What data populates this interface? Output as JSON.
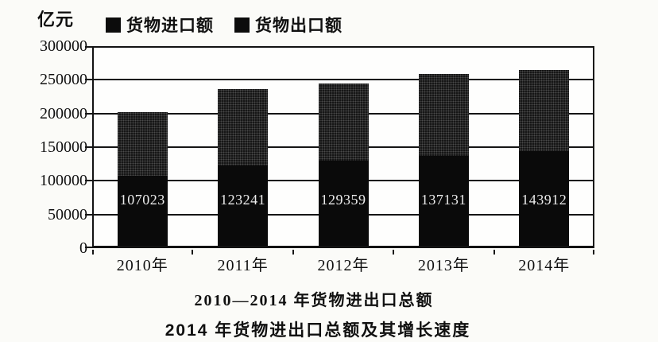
{
  "unit_label": "亿元",
  "legend": {
    "items": [
      {
        "label": "货物进口额"
      },
      {
        "label": "货物出口额"
      }
    ]
  },
  "captions": {
    "line1": "2010—2014 年货物进出口总额",
    "line2": "2014 年货物进出口总额及其增长速度"
  },
  "colors": {
    "export_bar": "#0a0a0a",
    "import_bar": "#161616",
    "grid": "#151515",
    "background": "#fbfbf8",
    "bar_label_text": "#ececec"
  },
  "chart_data": {
    "type": "bar",
    "stacked": true,
    "title": "2010—2014 年货物进出口总额",
    "categories": [
      "2010年",
      "2011年",
      "2012年",
      "2013年",
      "2014年"
    ],
    "series": [
      {
        "name": "货物出口额",
        "stack_position": "bottom",
        "color": "#0a0a0a",
        "values": [
          107023,
          123241,
          129359,
          137131,
          143912
        ]
      },
      {
        "name": "货物进口额",
        "stack_position": "top",
        "color": "#161616",
        "values": [
          94700,
          113160,
          114800,
          121040,
          120330
        ]
      }
    ],
    "totals_estimated": [
      201720,
      236400,
      244160,
      258170,
      264240
    ],
    "bar_labels": [
      "107023",
      "123241",
      "129359",
      "137131",
      "143912"
    ],
    "ylabel": "亿元",
    "xlabel": "",
    "ylim": [
      0,
      300000
    ],
    "ytick_step": 50000,
    "yticks": [
      {
        "value": 0,
        "label": "0"
      },
      {
        "value": 50000,
        "label": "50000"
      },
      {
        "value": 100000,
        "label": "100000"
      },
      {
        "value": 150000,
        "label": "150000"
      },
      {
        "value": 200000,
        "label": "200000"
      },
      {
        "value": 250000,
        "label": "250000"
      },
      {
        "value": 300000,
        "label": "300000"
      }
    ],
    "grid": true,
    "legend_position": "top"
  }
}
